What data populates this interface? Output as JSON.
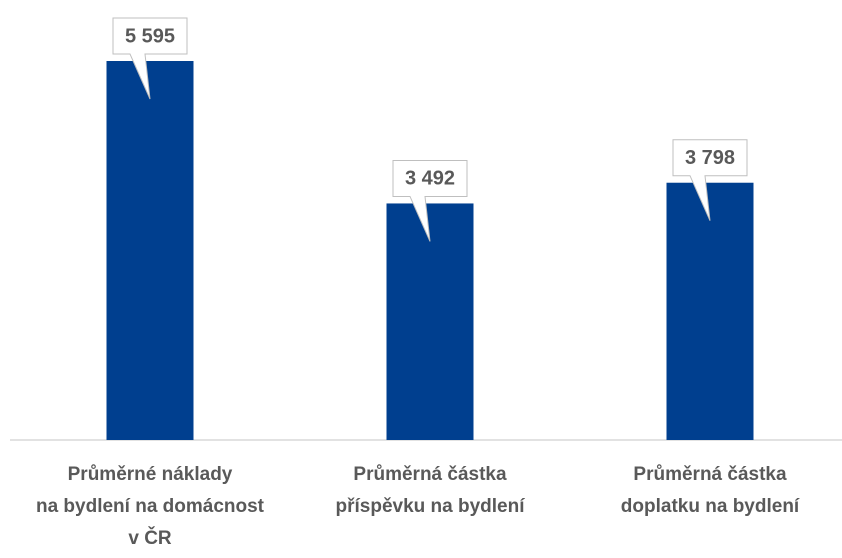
{
  "chart_data": {
    "type": "bar",
    "categories": [
      [
        "Průměrné náklady",
        "na bydlení na domácnost",
        "v ČR"
      ],
      [
        "Průměrná částka",
        "příspěvku na bydlení"
      ],
      [
        "Průměrná částka",
        "doplatku na bydlení"
      ]
    ],
    "values": [
      5595,
      3492,
      3798
    ],
    "value_labels": [
      "5 595",
      "3 492",
      "3 798"
    ],
    "color": "#003f8f"
  }
}
